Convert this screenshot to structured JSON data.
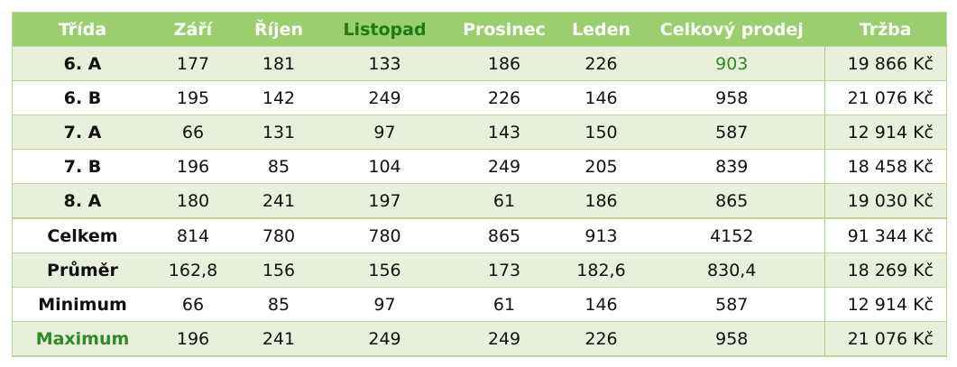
{
  "headers": [
    "Třída",
    "Září",
    "Říjen",
    "Listopad",
    "Prosinec",
    "Leden",
    "Celkový prodej",
    "Tržba"
  ],
  "rows": [
    {
      "label": "6. A",
      "values": [
        "177",
        "181",
        "133",
        "186",
        "226",
        "903",
        "19 866 Kč"
      ]
    },
    {
      "label": "6. B",
      "values": [
        "195",
        "142",
        "249",
        "226",
        "146",
        "958",
        "21 076 Kč"
      ]
    },
    {
      "label": "7. A",
      "values": [
        "66",
        "131",
        "97",
        "143",
        "150",
        "587",
        "12 914 Kč"
      ]
    },
    {
      "label": "7. B",
      "values": [
        "196",
        "85",
        "104",
        "249",
        "205",
        "839",
        "18 458 Kč"
      ]
    },
    {
      "label": "8. A",
      "values": [
        "180",
        "241",
        "197",
        "61",
        "186",
        "865",
        "19 030 Kč"
      ]
    },
    {
      "label": "Celkem",
      "values": [
        "814",
        "780",
        "780",
        "865",
        "913",
        "4152",
        "91 344 Kč"
      ]
    },
    {
      "label": "Průměr",
      "values": [
        "162,8",
        "156",
        "156",
        "173",
        "182,6",
        "830,4",
        "18 269 Kč"
      ]
    },
    {
      "label": "Minimum",
      "values": [
        "66",
        "85",
        "97",
        "61",
        "146",
        "587",
        "12 914 Kč"
      ]
    },
    {
      "label": "Maximum",
      "values": [
        "196",
        "241",
        "249",
        "249",
        "226",
        "958",
        "21 076 Kč"
      ]
    }
  ],
  "colors": {
    "header_bg": "#9bce6e",
    "header_text": "#ffffff",
    "highlight_green": "#1e7a14",
    "row_alt": "#e8f0dc",
    "border": "#b9d79a"
  }
}
